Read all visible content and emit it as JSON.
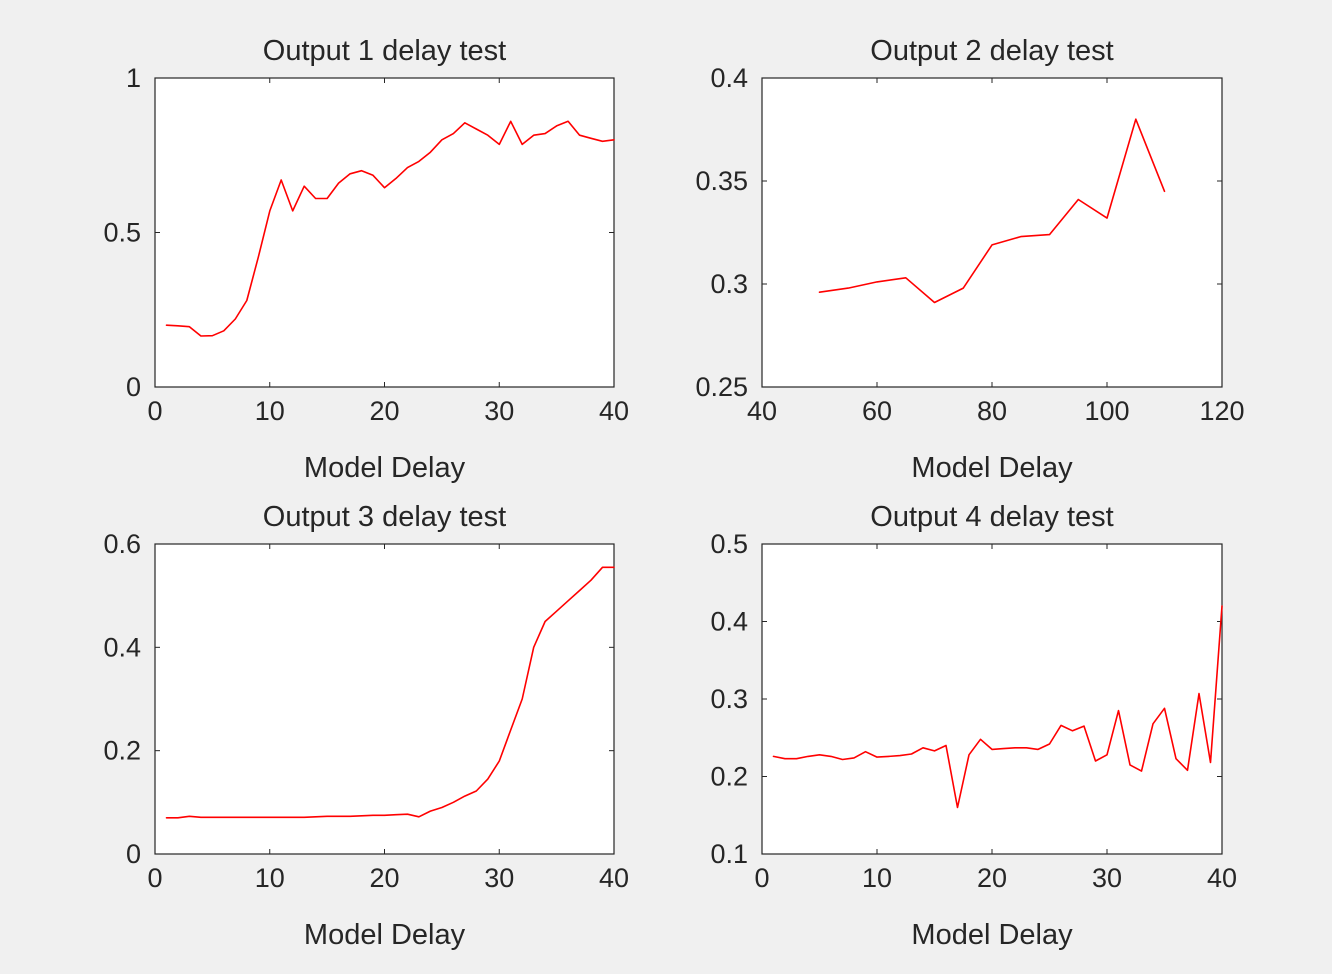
{
  "figure": {
    "background": "#f0f0f0",
    "line_color": "#ff0000"
  },
  "chart_data": [
    {
      "type": "line",
      "title": "Output 1 delay test",
      "xlabel": "Model Delay",
      "ylabel": "",
      "xlim": [
        0,
        40
      ],
      "ylim": [
        0,
        1
      ],
      "xticks": [
        0,
        10,
        20,
        30,
        40
      ],
      "xtick_labels": [
        "0",
        "10",
        "20",
        "30",
        "40"
      ],
      "yticks": [
        0,
        0.5,
        1
      ],
      "ytick_labels": [
        "0",
        "0.5",
        "1"
      ],
      "grid": false,
      "series": [
        {
          "x": [
            1,
            2,
            3,
            4,
            5,
            6,
            7,
            8,
            9,
            10,
            11,
            12,
            13,
            14,
            15,
            16,
            17,
            18,
            19,
            20,
            21,
            22,
            23,
            24,
            25,
            26,
            27,
            28,
            29,
            30,
            31,
            32,
            33,
            34,
            35,
            36,
            37,
            38,
            39,
            40
          ],
          "y": [
            0.2,
            0.198,
            0.195,
            0.165,
            0.166,
            0.182,
            0.22,
            0.28,
            0.42,
            0.57,
            0.67,
            0.57,
            0.65,
            0.61,
            0.61,
            0.66,
            0.69,
            0.7,
            0.685,
            0.645,
            0.675,
            0.71,
            0.73,
            0.76,
            0.8,
            0.82,
            0.855,
            0.835,
            0.815,
            0.785,
            0.86,
            0.785,
            0.815,
            0.82,
            0.845,
            0.86,
            0.815,
            0.805,
            0.795,
            0.8
          ]
        }
      ]
    },
    {
      "type": "line",
      "title": "Output 2 delay test",
      "xlabel": "Model Delay",
      "ylabel": "",
      "xlim": [
        40,
        120
      ],
      "ylim": [
        0.25,
        0.4
      ],
      "xticks": [
        40,
        60,
        80,
        100,
        120
      ],
      "xtick_labels": [
        "40",
        "60",
        "80",
        "100",
        "120"
      ],
      "yticks": [
        0.25,
        0.3,
        0.35,
        0.4
      ],
      "ytick_labels": [
        "0.25",
        "0.3",
        "0.35",
        "0.4"
      ],
      "grid": false,
      "series": [
        {
          "x": [
            50,
            55,
            60,
            65,
            70,
            75,
            80,
            85,
            90,
            95,
            100,
            105,
            110
          ],
          "y": [
            0.296,
            0.298,
            0.301,
            0.303,
            0.291,
            0.298,
            0.319,
            0.323,
            0.324,
            0.341,
            0.332,
            0.38,
            0.345
          ]
        }
      ]
    },
    {
      "type": "line",
      "title": "Output 3 delay test",
      "xlabel": "Model Delay",
      "ylabel": "",
      "xlim": [
        0,
        40
      ],
      "ylim": [
        0,
        0.6
      ],
      "xticks": [
        0,
        10,
        20,
        30,
        40
      ],
      "xtick_labels": [
        "0",
        "10",
        "20",
        "30",
        "40"
      ],
      "yticks": [
        0,
        0.2,
        0.4,
        0.6
      ],
      "ytick_labels": [
        "0",
        "0.2",
        "0.4",
        "0.6"
      ],
      "grid": false,
      "series": [
        {
          "x": [
            1,
            2,
            3,
            4,
            5,
            6,
            7,
            8,
            9,
            10,
            11,
            12,
            13,
            14,
            15,
            16,
            17,
            18,
            19,
            20,
            21,
            22,
            23,
            24,
            25,
            26,
            27,
            28,
            29,
            30,
            31,
            32,
            33,
            34,
            35,
            36,
            37,
            38,
            39,
            40
          ],
          "y": [
            0.07,
            0.07,
            0.073,
            0.071,
            0.071,
            0.071,
            0.071,
            0.071,
            0.071,
            0.071,
            0.071,
            0.071,
            0.071,
            0.072,
            0.073,
            0.073,
            0.073,
            0.074,
            0.075,
            0.075,
            0.076,
            0.077,
            0.072,
            0.083,
            0.09,
            0.1,
            0.112,
            0.122,
            0.145,
            0.18,
            0.24,
            0.3,
            0.4,
            0.45,
            0.47,
            0.49,
            0.51,
            0.53,
            0.555,
            0.555
          ]
        }
      ]
    },
    {
      "type": "line",
      "title": "Output 4 delay test",
      "xlabel": "Model Delay",
      "ylabel": "",
      "xlim": [
        0,
        40
      ],
      "ylim": [
        0.1,
        0.5
      ],
      "xticks": [
        0,
        10,
        20,
        30,
        40
      ],
      "xtick_labels": [
        "0",
        "10",
        "20",
        "30",
        "40"
      ],
      "yticks": [
        0.1,
        0.2,
        0.3,
        0.4,
        0.5
      ],
      "ytick_labels": [
        "0.1",
        "0.2",
        "0.3",
        "0.4",
        "0.5"
      ],
      "grid": false,
      "series": [
        {
          "x": [
            1,
            2,
            3,
            4,
            5,
            6,
            7,
            8,
            9,
            10,
            11,
            12,
            13,
            14,
            15,
            16,
            17,
            18,
            19,
            20,
            21,
            22,
            23,
            24,
            25,
            26,
            27,
            28,
            29,
            30,
            31,
            32,
            33,
            34,
            35,
            36,
            37,
            38,
            39,
            40
          ],
          "y": [
            0.226,
            0.223,
            0.223,
            0.226,
            0.228,
            0.226,
            0.222,
            0.224,
            0.232,
            0.225,
            0.226,
            0.227,
            0.229,
            0.237,
            0.233,
            0.24,
            0.16,
            0.228,
            0.248,
            0.235,
            0.236,
            0.237,
            0.237,
            0.235,
            0.242,
            0.266,
            0.259,
            0.265,
            0.22,
            0.228,
            0.285,
            0.215,
            0.207,
            0.268,
            0.288,
            0.223,
            0.208,
            0.307,
            0.218,
            0.42
          ]
        }
      ]
    }
  ]
}
